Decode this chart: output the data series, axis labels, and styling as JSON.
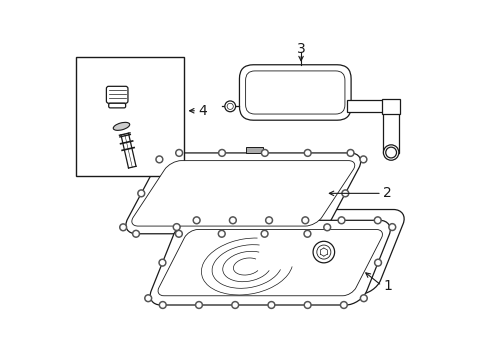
{
  "background_color": "#ffffff",
  "line_color": "#1a1a1a",
  "label_color": "#000000",
  "fig_width": 4.89,
  "fig_height": 3.6,
  "dpi": 100,
  "label_fontsize": 10
}
